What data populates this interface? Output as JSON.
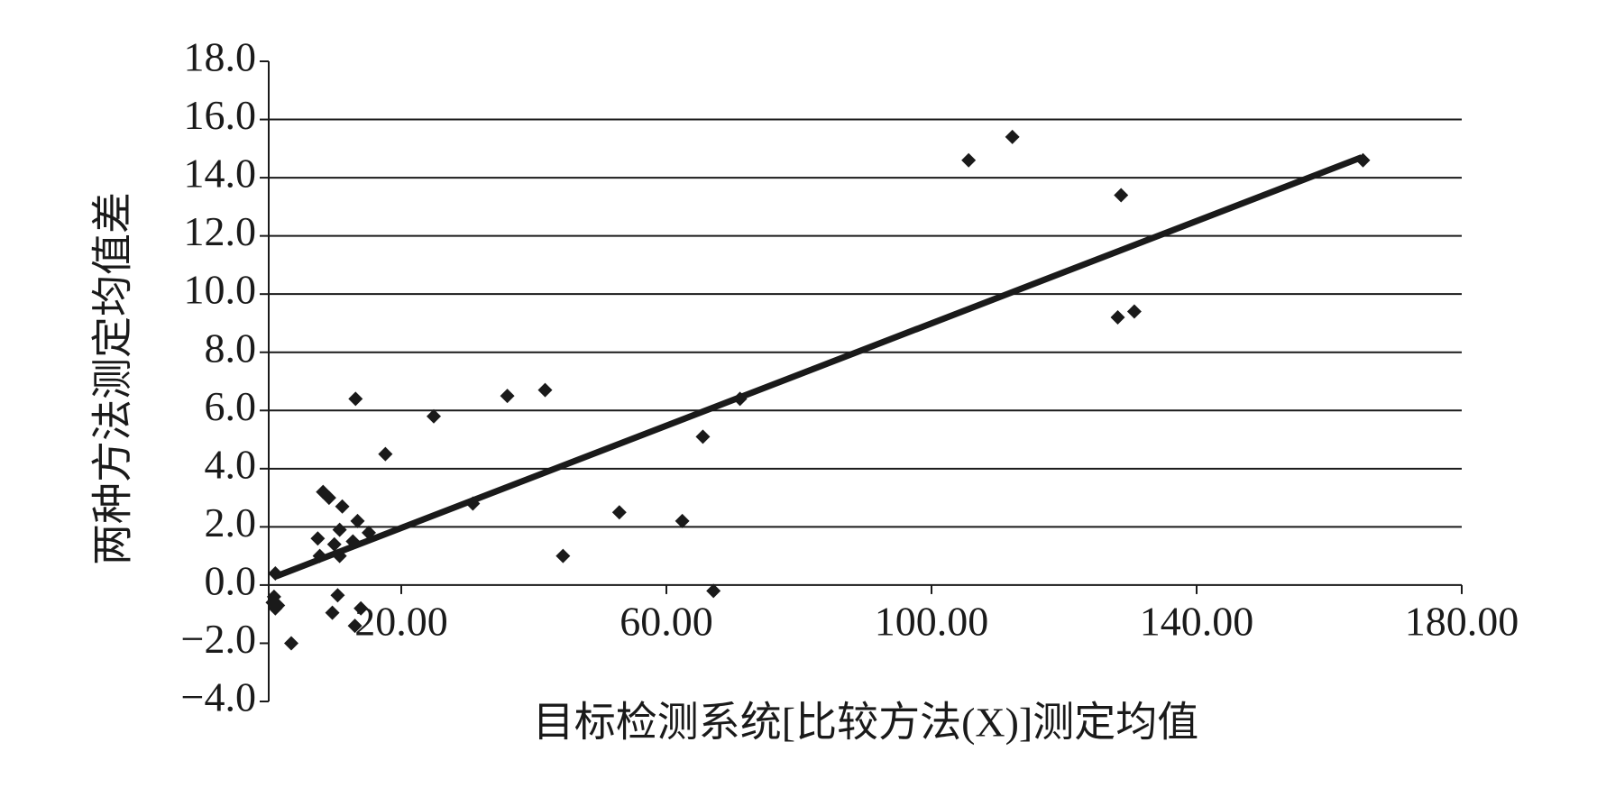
{
  "chart_data": {
    "type": "scatter",
    "x_label": "目标检测系统[比较方法(X)]测定均值",
    "y_label": "两种方法测定均值差",
    "color": "#1a1a1a",
    "x": [
      1,
      0.8,
      1.4,
      1,
      0.6,
      3.4,
      7.4,
      8.2,
      9.1,
      7.7,
      9.9,
      11.1,
      10.7,
      10.7,
      10.4,
      9.6,
      13.1,
      13.4,
      12.7,
      15.1,
      13.9,
      13,
      17.6,
      24.9,
      30.8,
      36,
      41.7,
      44.4,
      52.9,
      62.4,
      65.5,
      67.1,
      71.1,
      105.6,
      112.2,
      128.6,
      128.1,
      130.6,
      165.1
    ],
    "y": [
      0.4,
      -0.4,
      -0.7,
      -0.8,
      -0.6,
      -2,
      1.6,
      3.2,
      3,
      1,
      1.4,
      2.7,
      1.9,
      1,
      -0.35,
      -0.95,
      6.4,
      2.2,
      1.5,
      1.8,
      -0.8,
      -1.4,
      4.5,
      5.8,
      2.8,
      6.5,
      6.7,
      1,
      2.5,
      2.2,
      5.1,
      -0.2,
      6.4,
      14.6,
      15.4,
      13.4,
      9.2,
      9.4,
      14.6
    ],
    "trendline": {
      "x": [
        1.1,
        164.9
      ],
      "y": [
        0.3,
        14.7
      ]
    },
    "xlim": [
      0,
      180
    ],
    "xticks": [
      {
        "value": 20,
        "label": "20.00"
      },
      {
        "value": 60,
        "label": "60.00"
      },
      {
        "value": 100,
        "label": "100.00"
      },
      {
        "value": 140,
        "label": "140.00"
      },
      {
        "value": 180,
        "label": "180.00"
      }
    ],
    "ylim": [
      -4,
      18
    ],
    "yticks": [
      {
        "value": -4,
        "label": "−4.0"
      },
      {
        "value": -2,
        "label": "−2.0"
      },
      {
        "value": 0,
        "label": "0.0"
      },
      {
        "value": 2,
        "label": "2.0"
      },
      {
        "value": 4,
        "label": "4.0"
      },
      {
        "value": 6,
        "label": "6.0"
      },
      {
        "value": 8,
        "label": "8.0"
      },
      {
        "value": 10,
        "label": "10.0"
      },
      {
        "value": 12,
        "label": "12.0"
      },
      {
        "value": 14,
        "label": "14.0"
      },
      {
        "value": 16,
        "label": "16.0"
      },
      {
        "value": 18,
        "label": "18.0"
      }
    ],
    "grid": true
  }
}
